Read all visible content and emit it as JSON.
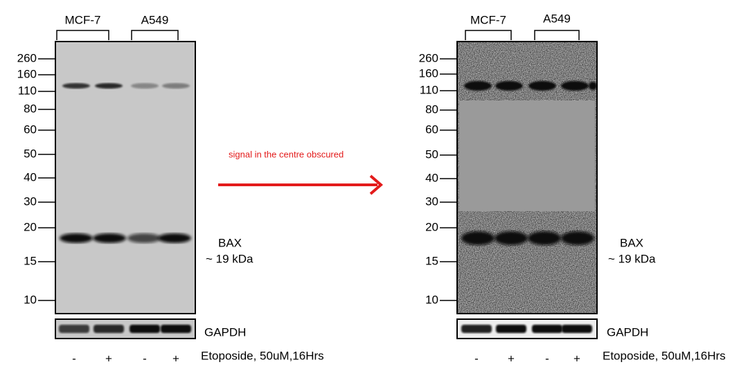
{
  "annotation": "signal in the centre obscured",
  "panels": [
    {
      "groups": [
        "MCF-7",
        "A549"
      ],
      "markers": [
        "260",
        "160",
        "110",
        "80",
        "60",
        "50",
        "40",
        "30",
        "20",
        "15",
        "10"
      ],
      "band_label": "BAX",
      "band_size": "~ 19 kDa",
      "loading_control": "GAPDH",
      "lanes": [
        "-",
        "+",
        "-",
        "+"
      ],
      "treatment": "Etoposide, 50uM,16Hrs"
    },
    {
      "groups": [
        "MCF-7",
        "A549"
      ],
      "markers": [
        "260",
        "160",
        "110",
        "80",
        "60",
        "50",
        "40",
        "30",
        "20",
        "15",
        "10"
      ],
      "band_label": "BAX",
      "band_size": "~ 19 kDa",
      "loading_control": "GAPDH",
      "lanes": [
        "-",
        "+",
        "-",
        "+"
      ],
      "treatment": "Etoposide, 50uM,16Hrs"
    }
  ]
}
